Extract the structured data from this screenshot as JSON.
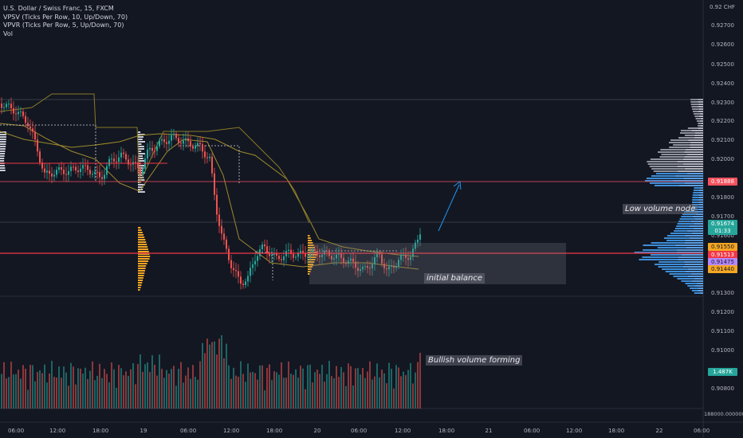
{
  "legend": {
    "symbol": "U.S. Dollar / Swiss Franc, 15, FXCM",
    "vpsv": "VPSV (Ticks Per Row, 10, Up/Down, 70)",
    "vpvr": "VPVR (Ticks Per Row, 5, Up/Down, 70)",
    "vol": "Vol"
  },
  "price_axis": {
    "top_label": "0.92 CHF",
    "ticks": [
      "0.92700",
      "0.92600",
      "0.92500",
      "0.92400",
      "0.92300",
      "0.92200",
      "0.92100",
      "0.92000",
      "0.91800",
      "0.91700",
      "0.91600",
      "0.91300",
      "0.91200",
      "0.91100",
      "0.91000",
      "0.90800"
    ],
    "volume_base": "188000.000000"
  },
  "price_tags": {
    "level_red": "0.91888",
    "last": "0.91674",
    "countdown": "01:33",
    "orange_1": "0.91550",
    "red_line": "0.91513",
    "purple": "0.91475",
    "orange_2": "0.91440",
    "volume": "1.487K"
  },
  "time_axis": [
    "06:00",
    "12:00",
    "18:00",
    "19",
    "06:00",
    "12:00",
    "18:00",
    "20",
    "06:00",
    "12:00",
    "18:00",
    "21",
    "06:00",
    "12:00",
    "18:00",
    "22",
    "06:00"
  ],
  "annotations": {
    "low_volume_node": "Low volume node",
    "initial_balance": "initial balance",
    "bullish_volume": "Bullish volume forming"
  },
  "colors": {
    "background": "#131722",
    "up": "#26a69a",
    "down": "#ef5350",
    "profile_blue": "#3d8ed8",
    "profile_grey": "#8f939e",
    "profile_orange": "#f5a623",
    "accent_red": "#f23645",
    "arrow_blue": "#2196f3"
  }
}
